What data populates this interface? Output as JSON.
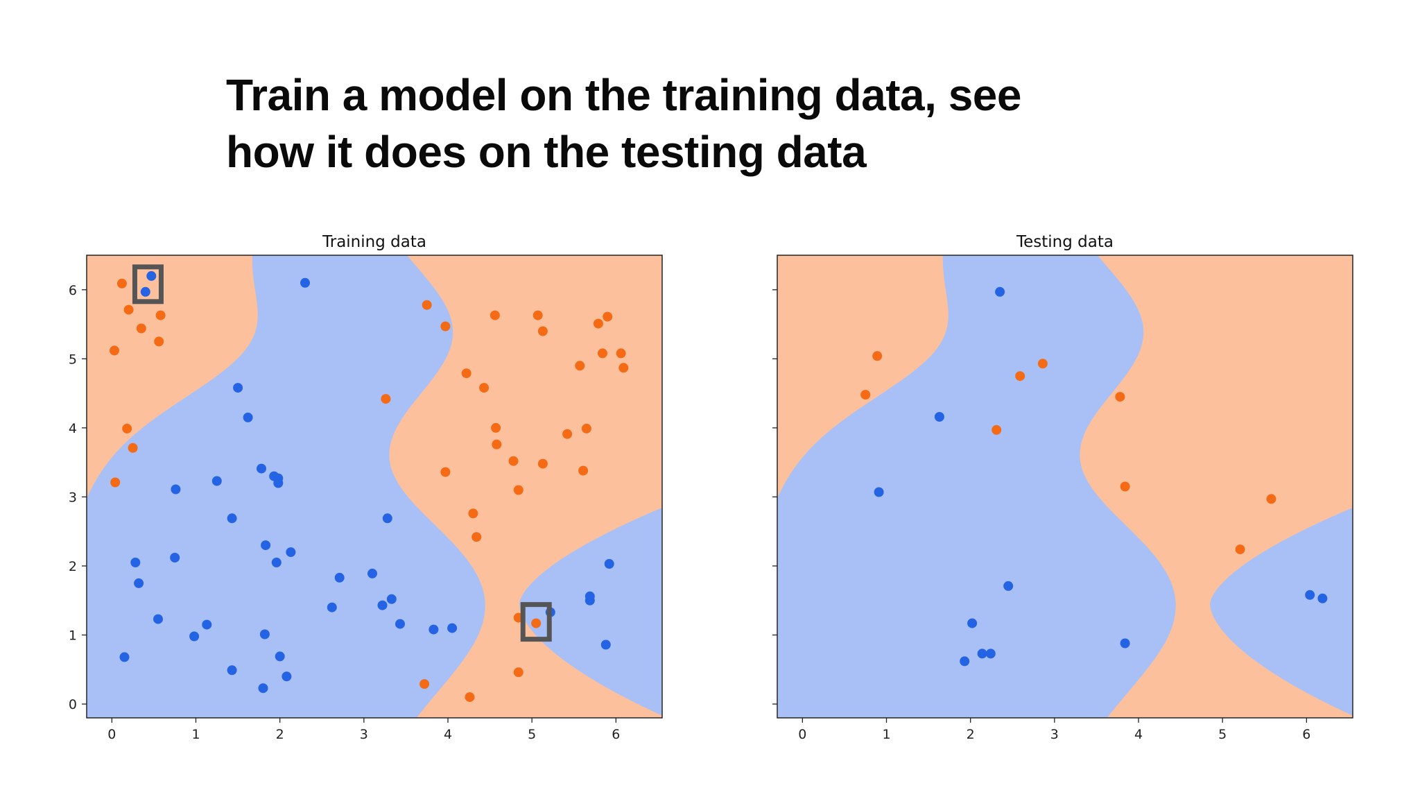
{
  "slide": {
    "title_line1": "Train a model on the training data, see",
    "title_line2": "how it does on the testing data"
  },
  "colors": {
    "blue_region": "#a8c0f6",
    "orange_region": "#fcc09c",
    "blue_point": "#2464e4",
    "orange_point": "#f56a14",
    "highlight_box": "#555555"
  },
  "chart_data": [
    {
      "type": "scatter",
      "title": "Training data",
      "xlim": [
        -0.3,
        6.55
      ],
      "ylim": [
        -0.2,
        6.5
      ],
      "xticks": [
        "0",
        "1",
        "2",
        "3",
        "4",
        "5",
        "6"
      ],
      "yticks": [
        "0",
        "1",
        "2",
        "3",
        "4",
        "5",
        "6"
      ],
      "background": "decision regions (blue / orange)",
      "series": [
        {
          "class": "blue",
          "points": [
            [
              0.47,
              6.2
            ],
            [
              0.4,
              5.97
            ],
            [
              2.3,
              6.1
            ],
            [
              1.5,
              4.58
            ],
            [
              1.62,
              4.15
            ],
            [
              1.78,
              3.41
            ],
            [
              1.93,
              3.3
            ],
            [
              1.98,
              3.27
            ],
            [
              1.98,
              3.2
            ],
            [
              1.25,
              3.23
            ],
            [
              0.76,
              3.11
            ],
            [
              1.43,
              2.69
            ],
            [
              3.28,
              2.69
            ],
            [
              1.83,
              2.3
            ],
            [
              2.13,
              2.2
            ],
            [
              1.96,
              2.05
            ],
            [
              0.75,
              2.12
            ],
            [
              0.28,
              2.05
            ],
            [
              0.32,
              1.75
            ],
            [
              2.71,
              1.83
            ],
            [
              3.1,
              1.89
            ],
            [
              3.33,
              1.52
            ],
            [
              3.22,
              1.43
            ],
            [
              2.62,
              1.4
            ],
            [
              0.55,
              1.23
            ],
            [
              1.13,
              1.15
            ],
            [
              0.98,
              0.98
            ],
            [
              1.82,
              1.01
            ],
            [
              3.43,
              1.16
            ],
            [
              3.83,
              1.08
            ],
            [
              4.05,
              1.1
            ],
            [
              0.15,
              0.68
            ],
            [
              2.0,
              0.69
            ],
            [
              1.43,
              0.49
            ],
            [
              2.08,
              0.4
            ],
            [
              1.8,
              0.23
            ],
            [
              5.22,
              1.33
            ],
            [
              5.69,
              1.56
            ],
            [
              5.69,
              1.5
            ],
            [
              5.92,
              2.03
            ],
            [
              5.88,
              0.86
            ]
          ]
        },
        {
          "class": "orange",
          "points": [
            [
              0.12,
              6.09
            ],
            [
              0.2,
              5.71
            ],
            [
              0.35,
              5.44
            ],
            [
              0.58,
              5.63
            ],
            [
              0.56,
              5.25
            ],
            [
              0.03,
              5.12
            ],
            [
              0.18,
              3.99
            ],
            [
              0.25,
              3.71
            ],
            [
              0.04,
              3.21
            ],
            [
              3.75,
              5.78
            ],
            [
              3.97,
              5.47
            ],
            [
              4.56,
              5.63
            ],
            [
              5.07,
              5.63
            ],
            [
              5.13,
              5.4
            ],
            [
              5.79,
              5.51
            ],
            [
              5.9,
              5.61
            ],
            [
              5.84,
              5.08
            ],
            [
              6.06,
              5.08
            ],
            [
              6.09,
              4.87
            ],
            [
              5.57,
              4.9
            ],
            [
              4.22,
              4.79
            ],
            [
              4.43,
              4.58
            ],
            [
              3.26,
              4.42
            ],
            [
              4.57,
              4.0
            ],
            [
              4.58,
              3.76
            ],
            [
              4.78,
              3.52
            ],
            [
              5.13,
              3.48
            ],
            [
              5.42,
              3.91
            ],
            [
              5.65,
              3.99
            ],
            [
              5.61,
              3.38
            ],
            [
              3.97,
              3.36
            ],
            [
              4.84,
              3.1
            ],
            [
              4.3,
              2.76
            ],
            [
              4.34,
              2.42
            ],
            [
              4.84,
              1.25
            ],
            [
              5.05,
              1.17
            ],
            [
              3.72,
              0.29
            ],
            [
              4.84,
              0.46
            ],
            [
              4.26,
              0.1
            ]
          ]
        }
      ],
      "highlighted_points": [
        [
          0.43,
          6.08
        ],
        [
          5.05,
          1.19
        ]
      ]
    },
    {
      "type": "scatter",
      "title": "Testing data",
      "xlim": [
        -0.3,
        6.55
      ],
      "ylim": [
        -0.2,
        6.5
      ],
      "xticks": [
        "0",
        "1",
        "2",
        "3",
        "4",
        "5",
        "6"
      ],
      "yticks": [],
      "background": "decision regions (blue / orange)",
      "series": [
        {
          "class": "blue",
          "points": [
            [
              2.35,
              5.97
            ],
            [
              1.63,
              4.16
            ],
            [
              0.91,
              3.07
            ],
            [
              2.45,
              1.71
            ],
            [
              2.02,
              1.17
            ],
            [
              2.14,
              0.73
            ],
            [
              2.24,
              0.73
            ],
            [
              1.93,
              0.62
            ],
            [
              3.84,
              0.88
            ],
            [
              6.04,
              1.58
            ],
            [
              6.19,
              1.53
            ]
          ]
        },
        {
          "class": "orange",
          "points": [
            [
              0.89,
              5.04
            ],
            [
              0.75,
              4.48
            ],
            [
              2.59,
              4.75
            ],
            [
              2.86,
              4.93
            ],
            [
              2.31,
              3.97
            ],
            [
              3.78,
              4.45
            ],
            [
              3.84,
              3.15
            ],
            [
              5.58,
              2.97
            ],
            [
              5.21,
              2.24
            ]
          ]
        }
      ],
      "highlighted_points": []
    }
  ]
}
